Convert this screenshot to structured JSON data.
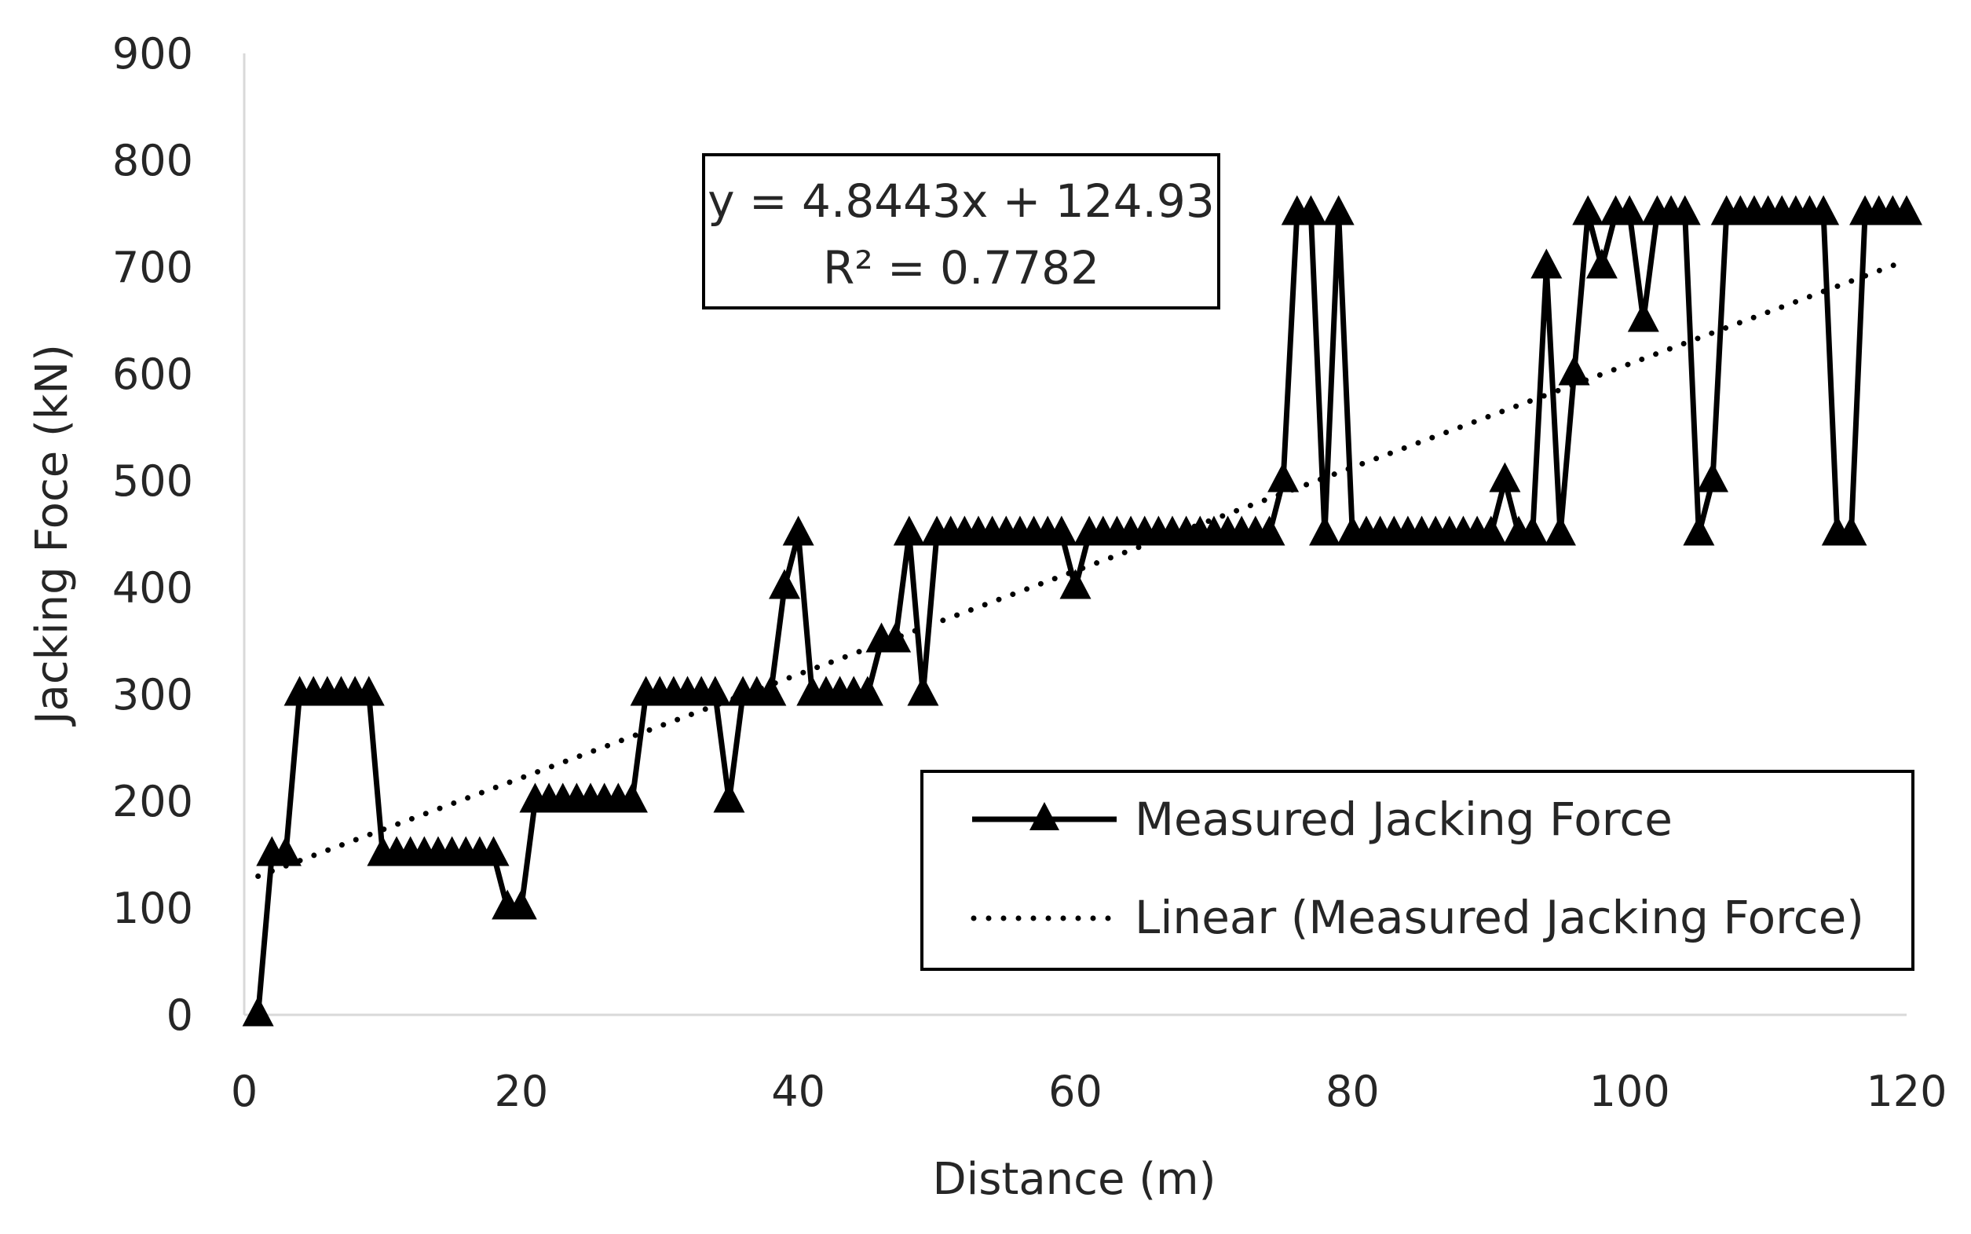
{
  "chart_data": {
    "type": "line",
    "title": "",
    "xlabel": "Distance (m)",
    "ylabel": "Jacking Foce (kN)",
    "xlim": [
      0,
      120
    ],
    "ylim": [
      0,
      900
    ],
    "xticks": [
      0,
      20,
      40,
      60,
      80,
      100,
      120
    ],
    "yticks": [
      0,
      100,
      200,
      300,
      400,
      500,
      600,
      700,
      800,
      900
    ],
    "xtick_labels": [
      "0",
      "20",
      "40",
      "60",
      "80",
      "100",
      "120"
    ],
    "ytick_labels": [
      "0",
      "100",
      "200",
      "300",
      "400",
      "500",
      "600",
      "700",
      "800",
      "900"
    ],
    "grid": false,
    "legend_position": "bottom-right",
    "series": [
      {
        "name": "Measured Jacking Force",
        "marker": "triangle",
        "color": "#000000",
        "x": [
          1,
          2,
          3,
          4,
          5,
          6,
          7,
          8,
          9,
          10,
          11,
          12,
          13,
          14,
          15,
          16,
          17,
          18,
          19,
          20,
          21,
          22,
          23,
          24,
          25,
          26,
          27,
          28,
          29,
          30,
          31,
          32,
          33,
          34,
          35,
          36,
          37,
          38,
          39,
          40,
          41,
          42,
          43,
          44,
          45,
          46,
          47,
          48,
          49,
          50,
          51,
          52,
          53,
          54,
          55,
          56,
          57,
          58,
          59,
          60,
          61,
          62,
          63,
          64,
          65,
          66,
          67,
          68,
          69,
          70,
          71,
          72,
          73,
          74,
          75,
          76,
          77,
          78,
          79,
          80,
          81,
          82,
          83,
          84,
          85,
          86,
          87,
          88,
          89,
          90,
          91,
          92,
          93,
          94,
          95,
          96,
          97,
          98,
          99,
          100,
          101,
          102,
          103,
          104,
          105,
          106,
          107,
          108,
          109,
          110,
          111,
          112,
          113,
          114,
          115,
          116,
          117,
          118,
          119,
          120
        ],
        "y": [
          0,
          150,
          150,
          300,
          300,
          300,
          300,
          300,
          300,
          150,
          150,
          150,
          150,
          150,
          150,
          150,
          150,
          150,
          100,
          100,
          200,
          200,
          200,
          200,
          200,
          200,
          200,
          200,
          300,
          300,
          300,
          300,
          300,
          300,
          200,
          300,
          300,
          300,
          400,
          450,
          300,
          300,
          300,
          300,
          300,
          350,
          350,
          450,
          300,
          450,
          450,
          450,
          450,
          450,
          450,
          450,
          450,
          450,
          450,
          400,
          450,
          450,
          450,
          450,
          450,
          450,
          450,
          450,
          450,
          450,
          450,
          450,
          450,
          450,
          500,
          750,
          750,
          450,
          750,
          450,
          450,
          450,
          450,
          450,
          450,
          450,
          450,
          450,
          450,
          450,
          500,
          450,
          450,
          700,
          450,
          600,
          750,
          700,
          750,
          750,
          650,
          750,
          750,
          750,
          450,
          500,
          750,
          750,
          750,
          750,
          750,
          750,
          750,
          750,
          450,
          450,
          750,
          750,
          750,
          750
        ]
      },
      {
        "name": "Linear (Measured Jacking Force)",
        "style": "dotted",
        "color": "#000000",
        "slope": 4.8443,
        "intercept": 124.93,
        "x": [
          1,
          120
        ],
        "y": [
          129.77,
          706.25
        ]
      }
    ],
    "trendline_annotation": {
      "equation": "y = 4.8443x + 124.93",
      "r_squared": "R² = 0.7782"
    }
  }
}
